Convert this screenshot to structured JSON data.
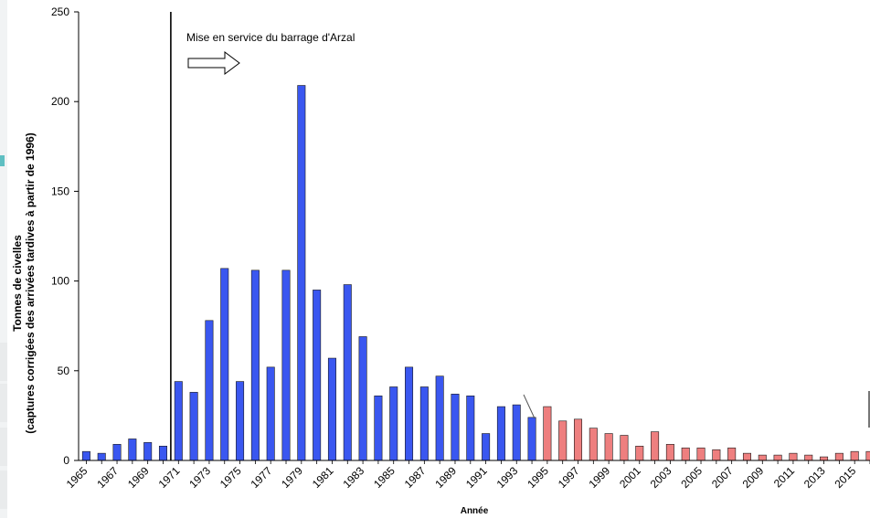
{
  "chart_data": {
    "type": "bar",
    "ylabel_line1": "Tonnes de civelles",
    "ylabel_line2": "(captures corrigées des arrivées tardives à partir de 1996)",
    "xlabel": "Année",
    "ylim": [
      0,
      250
    ],
    "yticks": [
      0,
      50,
      100,
      150,
      200,
      250
    ],
    "grid": false,
    "annotation": "Mise en service du barrage d'Arzal",
    "event_year": 1970.5,
    "years": [
      1965,
      1966,
      1967,
      1968,
      1969,
      1970,
      1971,
      1972,
      1973,
      1974,
      1975,
      1976,
      1977,
      1978,
      1979,
      1980,
      1981,
      1982,
      1983,
      1984,
      1985,
      1986,
      1987,
      1988,
      1989,
      1990,
      1991,
      1992,
      1993,
      1994,
      1995,
      1996,
      1997,
      1998,
      1999,
      2000,
      2001,
      2002,
      2003,
      2004,
      2005,
      2006,
      2007,
      2008,
      2009,
      2010,
      2011,
      2012,
      2013,
      2014,
      2015,
      2016
    ],
    "values": [
      5,
      4,
      9,
      12,
      10,
      8,
      44,
      38,
      78,
      107,
      44,
      106,
      52,
      106,
      209,
      95,
      57,
      98,
      69,
      36,
      41,
      52,
      41,
      47,
      37,
      36,
      15,
      30,
      31,
      24,
      30,
      22,
      23,
      18,
      15,
      14,
      8,
      16,
      9,
      7,
      7,
      6,
      7,
      4,
      3,
      3,
      4,
      3,
      2,
      4,
      5,
      5
    ],
    "series_colors": {
      "before_1995": "#3a57f0",
      "from_1995": "#ee7f7f"
    },
    "xtick_labels": [
      "1965",
      "1967",
      "1969",
      "1971",
      "1973",
      "1975",
      "1977",
      "1979",
      "1981",
      "1983",
      "1985",
      "1987",
      "1989",
      "1991",
      "1993",
      "1995",
      "1997",
      "1999",
      "2001",
      "2003",
      "2005",
      "2007",
      "2009",
      "2011",
      "2013",
      "2015"
    ]
  }
}
